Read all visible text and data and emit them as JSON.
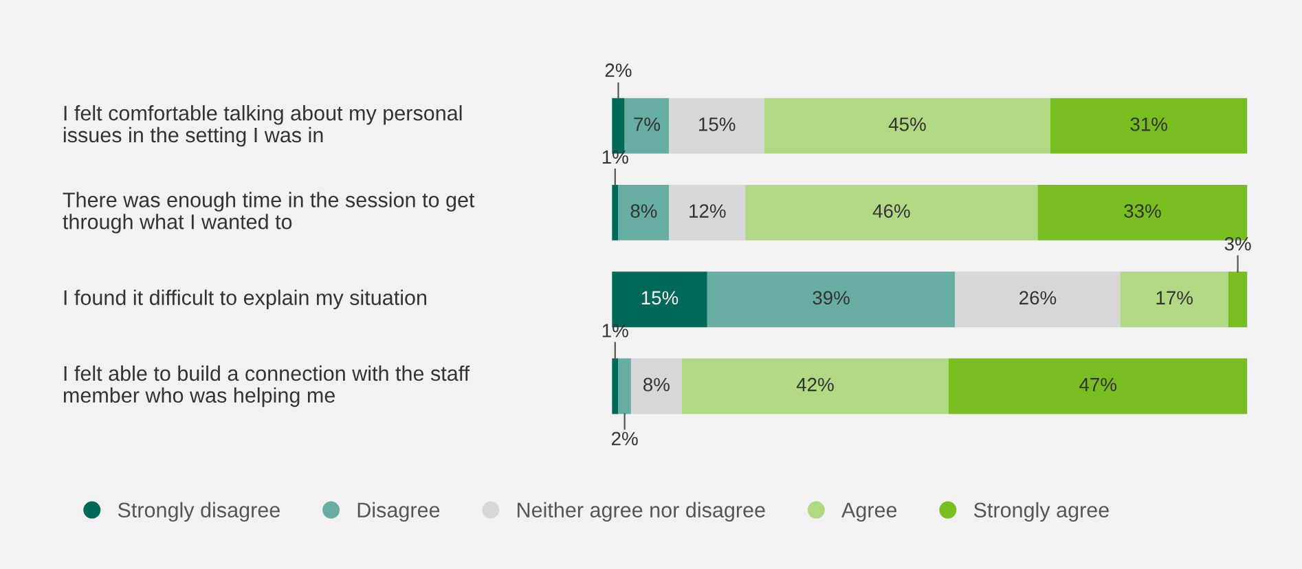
{
  "chart_data": {
    "type": "bar",
    "orientation": "horizontal",
    "stacked": true,
    "categories": [
      "I felt comfortable talking about my personal issues in the setting I was in",
      "There was enough time in the session to get through what I wanted to",
      "I found it difficult to explain my situation",
      "I felt able to build a connection with the staff member who was helping me"
    ],
    "series": [
      {
        "name": "Strongly disagree",
        "color": "#00695a",
        "values": [
          2,
          1,
          15,
          1
        ],
        "value_labels": [
          "2%",
          "1%",
          "15%",
          "1%"
        ]
      },
      {
        "name": "Disagree",
        "color": "#68ada3",
        "values": [
          7,
          8,
          39,
          2
        ],
        "value_labels": [
          "7%",
          "8%",
          "39%",
          "2%"
        ]
      },
      {
        "name": "Neither agree nor disagree",
        "color": "#d5d7d9",
        "values": [
          15,
          12,
          26,
          8
        ],
        "value_labels": [
          "15%",
          "12%",
          "26%",
          "8%"
        ]
      },
      {
        "name": "Agree",
        "color": "#b1d883",
        "values": [
          45,
          46,
          17,
          42
        ],
        "value_labels": [
          "45%",
          "46%",
          "17%",
          "42%"
        ]
      },
      {
        "name": "Strongly agree",
        "color": "#78be21",
        "values": [
          31,
          33,
          3,
          47
        ],
        "value_labels": [
          "31%",
          "33%",
          "3%",
          "47%"
        ]
      }
    ],
    "xlim": [
      0,
      100
    ],
    "legend": "bottom"
  }
}
